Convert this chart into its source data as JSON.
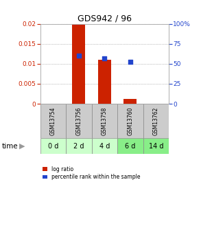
{
  "title": "GDS942 / 96",
  "categories": [
    "GSM13754",
    "GSM13756",
    "GSM13758",
    "GSM13760",
    "GSM13762"
  ],
  "time_labels": [
    "0 d",
    "2 d",
    "4 d",
    "6 d",
    "14 d"
  ],
  "log_ratio": [
    0.0,
    0.0198,
    0.011,
    0.0012,
    0.0
  ],
  "percentile_rank": [
    null,
    0.6,
    0.57,
    0.52,
    null
  ],
  "ylim_left": [
    0,
    0.02
  ],
  "ylim_right": [
    0,
    1.0
  ],
  "yticks_left": [
    0,
    0.005,
    0.01,
    0.015,
    0.02
  ],
  "ytick_labels_left": [
    "0",
    "0.005",
    "0.01",
    "0.015",
    "0.02"
  ],
  "yticks_right": [
    0,
    0.25,
    0.5,
    0.75,
    1.0
  ],
  "ytick_labels_right": [
    "0",
    "25",
    "50",
    "75",
    "100%"
  ],
  "bar_color": "#cc2200",
  "dot_color": "#2244cc",
  "bg_color_plot": "#ffffff",
  "bg_color_gsm": "#cccccc",
  "bg_color_time_0": "#ccffcc",
  "bg_color_time_1": "#ccffcc",
  "bg_color_time_2": "#ccffcc",
  "bg_color_time_3": "#88ee88",
  "bg_color_time_4": "#88ee88",
  "grid_color": "#888888",
  "left_tick_color": "#cc2200",
  "right_tick_color": "#2244cc",
  "bar_width": 0.5,
  "dot_size": 25,
  "legend_red": "log ratio",
  "legend_blue": "percentile rank within the sample"
}
